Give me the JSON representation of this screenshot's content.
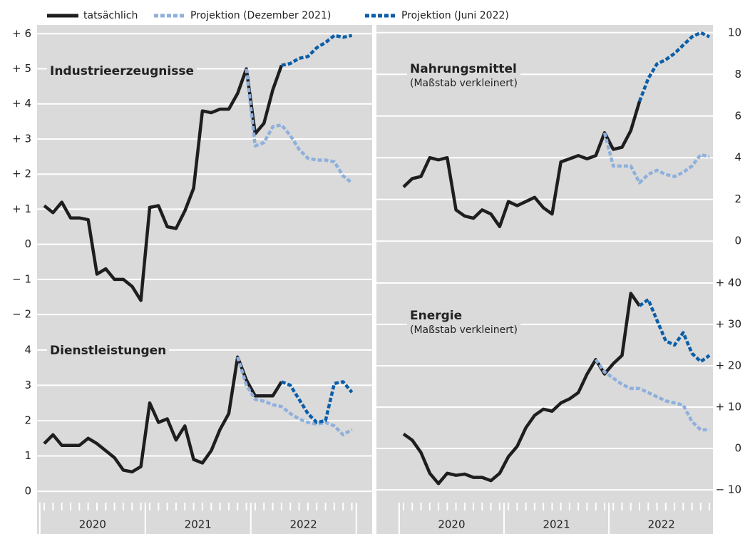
{
  "chart_data": [
    {
      "type": "line",
      "title": "Industrieerzeugnisse",
      "axis_side": "left",
      "grid": true,
      "ylim": [
        -2.1,
        6.25
      ],
      "yticks": [
        {
          "value": -2,
          "label": "− 2"
        },
        {
          "value": -1,
          "label": "− 1"
        },
        0,
        {
          "value": 1,
          "label": "+ 1"
        },
        {
          "value": 2,
          "label": "+ 2"
        },
        {
          "value": 3,
          "label": "+ 3"
        },
        {
          "value": 4,
          "label": "+ 4"
        },
        {
          "value": 5,
          "label": "+ 5"
        },
        {
          "value": 6,
          "label": "+ 6"
        }
      ],
      "series": [
        {
          "name": "tatsächlich",
          "color": "#1e1e1e",
          "dash": false,
          "values": [
            1.1,
            0.9,
            1.2,
            0.75,
            0.75,
            0.7,
            -0.85,
            -0.7,
            -1.0,
            -1.0,
            -1.2,
            -1.6,
            1.05,
            1.1,
            0.5,
            0.45,
            0.95,
            1.6,
            3.8,
            3.75,
            3.85,
            3.85,
            4.3,
            5.0,
            3.15,
            3.45,
            4.4,
            5.1,
            null,
            null,
            null,
            null,
            null,
            null,
            null,
            null
          ]
        },
        {
          "name": "Projektion (Dezember 2021)",
          "color": "#8fb0dc",
          "dash": true,
          "values": [
            null,
            null,
            null,
            null,
            null,
            null,
            null,
            null,
            null,
            null,
            null,
            null,
            null,
            null,
            null,
            null,
            null,
            null,
            null,
            null,
            null,
            null,
            null,
            5.0,
            2.8,
            2.9,
            3.35,
            3.4,
            3.1,
            2.7,
            2.45,
            2.4,
            2.4,
            2.35,
            1.95,
            1.75
          ]
        },
        {
          "name": "Projektion (Juni 2022)",
          "color": "#0b5ea8",
          "dash": true,
          "values": [
            null,
            null,
            null,
            null,
            null,
            null,
            null,
            null,
            null,
            null,
            null,
            null,
            null,
            null,
            null,
            null,
            null,
            null,
            null,
            null,
            null,
            null,
            null,
            null,
            null,
            null,
            null,
            5.1,
            5.15,
            5.3,
            5.35,
            5.6,
            5.75,
            5.95,
            5.9,
            5.95
          ]
        }
      ]
    },
    {
      "type": "line",
      "title": "Dienstleistungen",
      "axis_side": "left",
      "grid": true,
      "ylim": [
        -0.2,
        4.3
      ],
      "yticks": [
        0,
        1,
        2,
        3,
        4
      ],
      "x_labels": [
        "2020",
        "2021",
        "2022"
      ],
      "series": [
        {
          "color": "#1e1e1e",
          "dash": false,
          "values": [
            1.35,
            1.6,
            1.3,
            1.3,
            1.3,
            1.5,
            1.35,
            1.15,
            0.95,
            0.6,
            0.55,
            0.7,
            2.5,
            1.95,
            2.05,
            1.45,
            1.85,
            0.9,
            0.8,
            1.15,
            1.75,
            2.2,
            3.8,
            3.15,
            2.7,
            2.7,
            2.7,
            3.1,
            null,
            null,
            null,
            null,
            null,
            null,
            null,
            null
          ]
        },
        {
          "color": "#8fb0dc",
          "dash": true,
          "values": [
            null,
            null,
            null,
            null,
            null,
            null,
            null,
            null,
            null,
            null,
            null,
            null,
            null,
            null,
            null,
            null,
            null,
            null,
            null,
            null,
            null,
            null,
            3.8,
            3.0,
            2.6,
            2.55,
            2.45,
            2.4,
            2.2,
            2.05,
            1.95,
            1.9,
            1.95,
            1.85,
            1.6,
            1.75
          ]
        },
        {
          "color": "#0b5ea8",
          "dash": true,
          "values": [
            null,
            null,
            null,
            null,
            null,
            null,
            null,
            null,
            null,
            null,
            null,
            null,
            null,
            null,
            null,
            null,
            null,
            null,
            null,
            null,
            null,
            null,
            null,
            null,
            null,
            null,
            null,
            3.1,
            3.0,
            2.6,
            2.2,
            1.95,
            2.0,
            3.05,
            3.1,
            2.8
          ]
        }
      ]
    },
    {
      "type": "line",
      "title": "Nahrungsmittel",
      "note": "(Maßstab verkleinert)",
      "axis_side": "right",
      "grid": true,
      "ylim": [
        -0.3,
        10.3
      ],
      "yticks": [
        0,
        2,
        4,
        6,
        8,
        10
      ],
      "series": [
        {
          "color": "#1e1e1e",
          "dash": false,
          "values": [
            2.6,
            3.0,
            3.1,
            4.0,
            3.9,
            4.0,
            1.5,
            1.2,
            1.1,
            1.5,
            1.3,
            0.7,
            1.9,
            1.7,
            1.9,
            2.1,
            1.6,
            1.3,
            3.8,
            3.95,
            4.1,
            3.95,
            4.1,
            5.2,
            4.4,
            4.5,
            5.3,
            6.7,
            null,
            null,
            null,
            null,
            null,
            null,
            null,
            null
          ]
        },
        {
          "color": "#8fb0dc",
          "dash": true,
          "values": [
            null,
            null,
            null,
            null,
            null,
            null,
            null,
            null,
            null,
            null,
            null,
            null,
            null,
            null,
            null,
            null,
            null,
            null,
            null,
            null,
            null,
            null,
            null,
            5.2,
            3.6,
            3.6,
            3.6,
            2.8,
            3.2,
            3.4,
            3.2,
            3.1,
            3.3,
            3.6,
            4.15,
            4.05
          ]
        },
        {
          "color": "#0b5ea8",
          "dash": true,
          "values": [
            null,
            null,
            null,
            null,
            null,
            null,
            null,
            null,
            null,
            null,
            null,
            null,
            null,
            null,
            null,
            null,
            null,
            null,
            null,
            null,
            null,
            null,
            null,
            null,
            null,
            null,
            null,
            6.7,
            7.8,
            8.5,
            8.7,
            9.0,
            9.4,
            9.8,
            10.0,
            9.8
          ]
        }
      ]
    },
    {
      "type": "line",
      "title": "Energie",
      "note": "(Maßstab verkleinert)",
      "axis_side": "right",
      "grid": true,
      "ylim": [
        -12,
        42
      ],
      "yticks": [
        {
          "value": -10,
          "label": "− 10"
        },
        0,
        {
          "value": 10,
          "label": "+ 10"
        },
        {
          "value": 20,
          "label": "+ 20"
        },
        {
          "value": 30,
          "label": "+ 30"
        },
        {
          "value": 40,
          "label": "+ 40"
        }
      ],
      "x_labels": [
        "2020",
        "2021",
        "2022"
      ],
      "series": [
        {
          "color": "#1e1e1e",
          "dash": false,
          "values": [
            3.5,
            2.0,
            -1.0,
            -6.0,
            -8.5,
            -6.0,
            -6.5,
            -6.2,
            -7.0,
            -7.0,
            -7.8,
            -6.0,
            -2.0,
            0.5,
            5.0,
            8.0,
            9.5,
            9.0,
            11.0,
            12.0,
            13.5,
            18.0,
            21.5,
            18.0,
            20.5,
            22.5,
            37.5,
            34.5,
            null,
            null,
            null,
            null,
            null,
            null,
            null,
            null
          ]
        },
        {
          "color": "#8fb0dc",
          "dash": true,
          "values": [
            null,
            null,
            null,
            null,
            null,
            null,
            null,
            null,
            null,
            null,
            null,
            null,
            null,
            null,
            null,
            null,
            null,
            null,
            null,
            null,
            null,
            null,
            21.5,
            18.5,
            17.0,
            15.5,
            14.5,
            14.5,
            13.5,
            12.5,
            11.5,
            11.0,
            10.5,
            6.5,
            4.5,
            4.5
          ]
        },
        {
          "color": "#0b5ea8",
          "dash": true,
          "values": [
            null,
            null,
            null,
            null,
            null,
            null,
            null,
            null,
            null,
            null,
            null,
            null,
            null,
            null,
            null,
            null,
            null,
            null,
            null,
            null,
            null,
            null,
            null,
            null,
            null,
            null,
            null,
            34.5,
            36.0,
            31.0,
            26.0,
            25.0,
            28.0,
            23.0,
            21.0,
            22.5
          ]
        }
      ]
    }
  ]
}
